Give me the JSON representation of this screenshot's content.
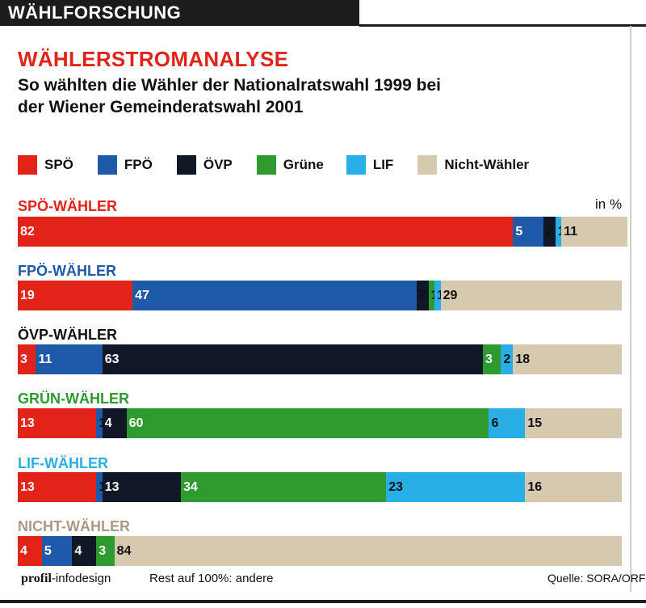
{
  "header": {
    "section": "WÄHLFORSCHUNG"
  },
  "colors": {
    "SPÖ": "#e2231a",
    "FPÖ": "#1e5aa8",
    "ÖVP": "#101828",
    "Grüne": "#2e9a2f",
    "LIF": "#2aaee6",
    "Nicht-Wähler": "#d6c9b0",
    "title": "#e2231a",
    "gruen_label": "#2e9a2f",
    "lif_label": "#2aaee6",
    "nicht_label": "#a89b83"
  },
  "chart_data": {
    "type": "bar",
    "orientation": "horizontal",
    "stacked": true,
    "title": "WÄHLERSTROMANALYSE",
    "subtitle": "So wählten die Wähler der Nationalratswahl 1999 bei der Wiener Gemeinderatswahl 2001",
    "unit": "in %",
    "legend": [
      "SPÖ",
      "FPÖ",
      "ÖVP",
      "Grüne",
      "LIF",
      "Nicht-Wähler"
    ],
    "legend_placement": "top",
    "categories": [
      "SPÖ-WÄHLER",
      "FPÖ-WÄHLER",
      "ÖVP-WÄHLER",
      "GRÜN-WÄHLER",
      "LIF-WÄHLER",
      "NICHT-WÄHLER"
    ],
    "series": [
      {
        "name": "SPÖ",
        "values": [
          82,
          19,
          3,
          13,
          13,
          4
        ]
      },
      {
        "name": "FPÖ",
        "values": [
          5,
          47,
          11,
          1,
          1,
          5
        ]
      },
      {
        "name": "ÖVP",
        "values": [
          2,
          2,
          63,
          4,
          13,
          4
        ]
      },
      {
        "name": "Grüne",
        "values": [
          0,
          1,
          3,
          60,
          34,
          3
        ]
      },
      {
        "name": "LIF",
        "values": [
          1,
          1,
          2,
          6,
          23,
          0
        ]
      },
      {
        "name": "Nicht-Wähler",
        "values": [
          11,
          29,
          18,
          15,
          16,
          84
        ]
      }
    ],
    "xlim": [
      0,
      100
    ],
    "grid": false
  },
  "footer": {
    "brand_bold": "profil",
    "brand_rest": "-infodesign",
    "note": "Rest auf 100%: andere",
    "source": "Quelle: SORA/ORF"
  }
}
